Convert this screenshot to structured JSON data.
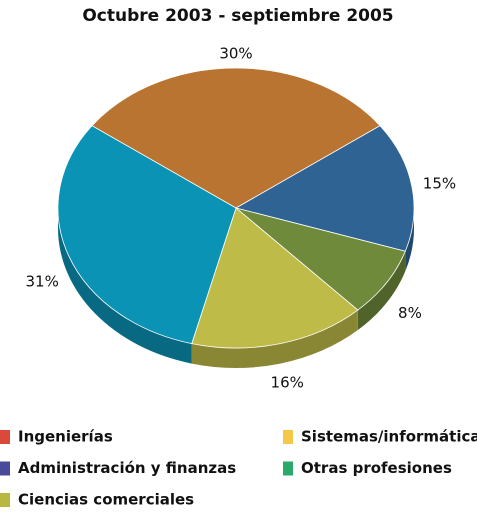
{
  "chart_data": {
    "type": "pie",
    "title": "Octubre 2003 - septiembre 2005",
    "values": [
      30,
      15,
      8,
      16,
      31
    ],
    "value_labels": [
      "30%",
      "15%",
      "8%",
      "16%",
      "31%"
    ],
    "colors": [
      "#b87430",
      "#2e6394",
      "#6e8a3a",
      "#bfbb48",
      "#0a93b5"
    ],
    "legend": [
      {
        "name": "Ingenierías",
        "color": "#d94a3a"
      },
      {
        "name": "Sistemas/informática",
        "color": "#f5c84a"
      },
      {
        "name": "Administración y finanzas",
        "color": "#4a4a9a"
      },
      {
        "name": "Otras profesiones",
        "color": "#2aaa6a"
      },
      {
        "name": "Ciencias comerciales",
        "color": "#b8b840"
      }
    ]
  }
}
